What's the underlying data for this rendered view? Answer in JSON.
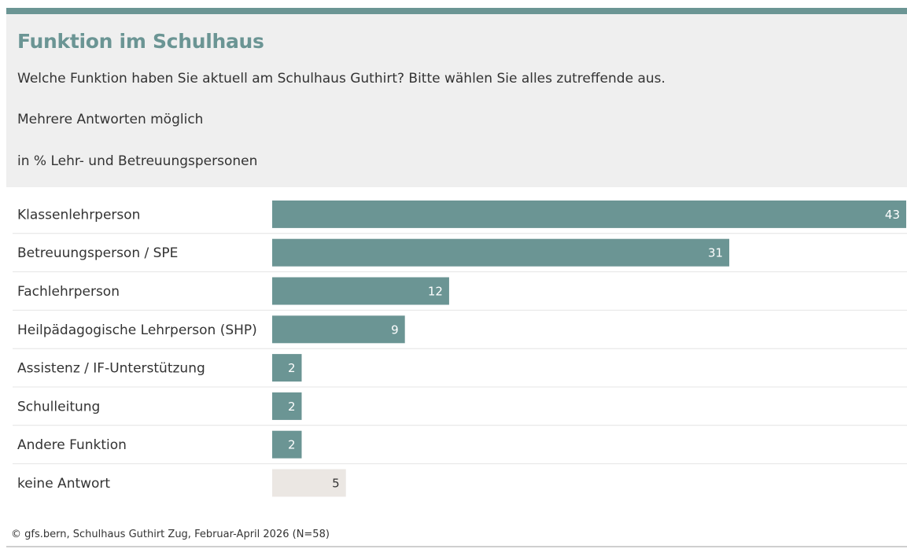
{
  "header": {
    "title": "Funktion im Schulhaus",
    "question": "Welche Funktion haben Sie aktuell am Schulhaus Guthirt? Bitte wählen Sie alles zutreffende aus.",
    "note": "Mehrere Antworten möglich",
    "unit": "in % Lehr- und Betreuungspersonen"
  },
  "footer": {
    "source": "© gfs.bern, Schulhaus Guthirt Zug, Februar-April 2026 (N=58)"
  },
  "colors": {
    "accent": "#6b9594",
    "bar": "#6b9594",
    "bar_no_answer": "#ebe7e3",
    "header_bg": "#efefef"
  },
  "chart_data": {
    "type": "bar",
    "orientation": "horizontal",
    "categories": [
      "Klassenlehrperson",
      "Betreuungsperson / SPE",
      "Fachlehrperson",
      "Heilpädagogische Lehrperson (SHP)",
      "Assistenz / IF-Unterstützung",
      "Schulleitung",
      "Andere Funktion",
      "keine Antwort"
    ],
    "values": [
      43,
      31,
      12,
      9,
      2,
      2,
      2,
      5
    ],
    "value_labels": [
      "43",
      "31",
      "12",
      "9",
      "2",
      "2",
      "2",
      "5"
    ],
    "xlim": [
      0,
      43
    ],
    "grid": false
  }
}
